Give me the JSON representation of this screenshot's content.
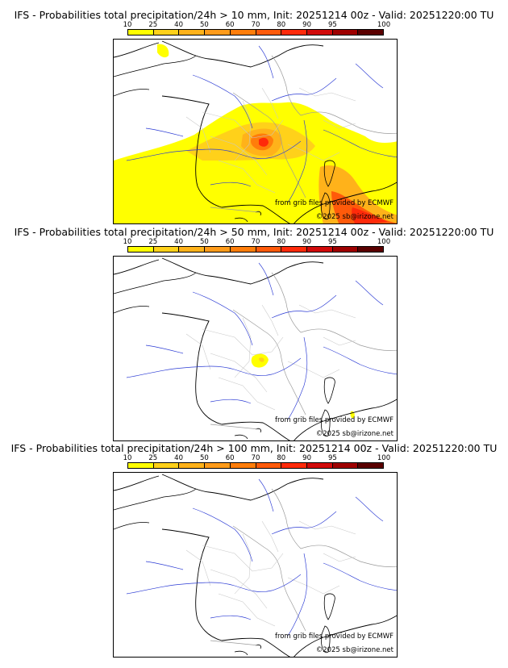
{
  "legend": {
    "ticks": [
      "10",
      "25",
      "40",
      "50",
      "60",
      "70",
      "80",
      "90",
      "95",
      "100"
    ],
    "colors": [
      "#ffff00",
      "#ffd11a",
      "#ffb21a",
      "#ff9b1a",
      "#ff7d0a",
      "#ff5a0a",
      "#ff2a0a",
      "#d10a0a",
      "#9e0000",
      "#5a0000"
    ]
  },
  "panels": [
    {
      "title": "IFS - Probabilities total precipitation/24h > 10 mm, Init: 20251214 00z - Valid: 20251220:00 TU",
      "credit_source": "from grib files provided by ECMWF",
      "credit_copyright": "©2025 sb@irizone.net"
    },
    {
      "title": "IFS - Probabilities total precipitation/24h > 50 mm, Init: 20251214 00z - Valid: 20251220:00 TU",
      "credit_source": "from grib files provided by ECMWF",
      "credit_copyright": "©2025 sb@irizone.net"
    },
    {
      "title": "IFS - Probabilities total precipitation/24h > 100 mm, Init: 20251214 00z - Valid: 20251220:00 TU",
      "credit_source": "from grib files provided by ECMWF",
      "credit_copyright": "©2025 sb@irizone.net"
    }
  ]
}
